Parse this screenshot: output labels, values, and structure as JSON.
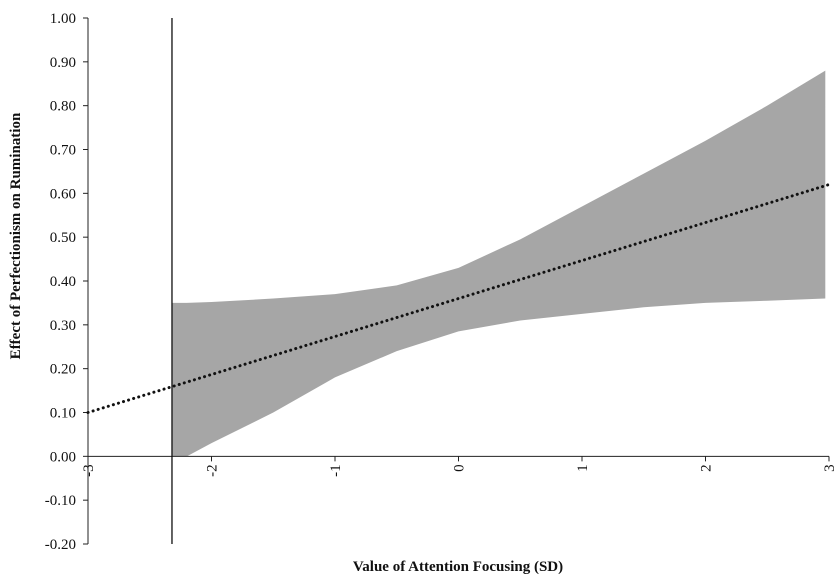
{
  "chart_data": {
    "type": "line",
    "title": "",
    "xlabel": "Value of Attention Focusing (SD)",
    "ylabel": "Effect of Perfectionism on Rumination",
    "xlim": [
      -3,
      3
    ],
    "ylim": [
      -0.2,
      1.0
    ],
    "x_ticks": [
      -3,
      -2,
      -1,
      0,
      1,
      2,
      3
    ],
    "x_tick_labels": [
      "-3",
      "-2",
      "-1",
      "0",
      "1",
      "2",
      "3"
    ],
    "y_ticks": [
      1.0,
      0.9,
      0.8,
      0.7,
      0.6,
      0.5,
      0.4,
      0.3,
      0.2,
      0.1,
      0.0,
      -0.1,
      -0.2
    ],
    "y_tick_labels": [
      "1.00",
      "0.90",
      "0.80",
      "0.70",
      "0.60",
      "0.50",
      "0.40",
      "0.30",
      "0.20",
      "0.10",
      "0.00",
      "-0.10",
      "-0.20"
    ],
    "grid": false,
    "series": [
      {
        "style": "dotted",
        "color": "#111111",
        "x": [
          -3,
          3
        ],
        "y": [
          0.1,
          0.62
        ]
      }
    ],
    "confidence_band": {
      "color": "#a6a6a6",
      "x": [
        -2.32,
        -2.2,
        -2.0,
        -1.5,
        -1.0,
        -0.5,
        0.0,
        0.5,
        1.0,
        1.5,
        2.0,
        2.5,
        2.97
      ],
      "upper": [
        0.35,
        0.35,
        0.352,
        0.36,
        0.37,
        0.39,
        0.43,
        0.495,
        0.57,
        0.645,
        0.72,
        0.8,
        0.88
      ],
      "lower": [
        -0.06,
        0.0,
        0.03,
        0.1,
        0.18,
        0.24,
        0.285,
        0.31,
        0.325,
        0.34,
        0.35,
        0.355,
        0.36
      ]
    },
    "reference_line": {
      "x": -2.32,
      "color": "#111111"
    }
  }
}
